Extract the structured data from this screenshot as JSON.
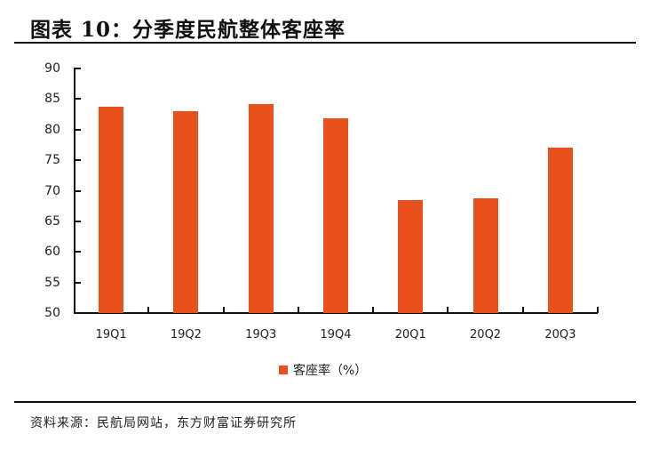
{
  "title": "图表 10：分季度民航整体客座率",
  "source": "资料来源：民航局网站，东方财富证券研究所",
  "legend": {
    "label": "客座率（%）",
    "color": "#e8501c"
  },
  "chart_data": {
    "type": "bar",
    "title": "图表 10：分季度民航整体客座率",
    "xlabel": "",
    "ylabel": "",
    "categories": [
      "19Q1",
      "19Q2",
      "19Q3",
      "19Q4",
      "20Q1",
      "20Q2",
      "20Q3"
    ],
    "series": [
      {
        "name": "客座率（%）",
        "values": [
          83.7,
          83.0,
          84.2,
          81.8,
          68.5,
          68.7,
          77.0
        ],
        "color": "#e8501c"
      }
    ],
    "ylim": [
      50,
      90
    ],
    "yticks": [
      50,
      55,
      60,
      65,
      70,
      75,
      80,
      85,
      90
    ],
    "grid": false,
    "legend_position": "bottom"
  }
}
